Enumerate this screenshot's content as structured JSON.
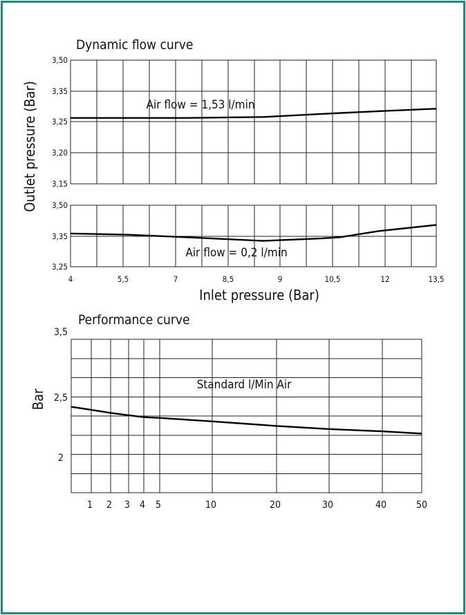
{
  "chart_data": [
    {
      "type": "line",
      "title": "Dynamic flow curve",
      "ylabel": "Outlet pressure (Bar)",
      "xlabel": "Inlet pressure (Bar)",
      "x_ticks": [
        "4",
        "5,5",
        "7",
        "8,5",
        "9",
        "10,5",
        "12",
        "13,5"
      ],
      "grid": true,
      "panels": [
        {
          "annotation": "Air flow = 1,53 l/min",
          "y_ticks": [
            "3,50",
            "3,35",
            "3,25",
            "3,20",
            "3,15"
          ],
          "series": [
            {
              "x": [
                4,
                7,
                9,
                10.5,
                12,
                13.5
              ],
              "y": [
                3.262,
                3.262,
                3.265,
                3.275,
                3.284,
                3.292
              ]
            }
          ]
        },
        {
          "annotation": "Air flow = 0,2 l/min",
          "y_ticks": [
            "3,50",
            "3,35",
            "3,25"
          ],
          "series": [
            {
              "x": [
                4,
                5.5,
                7,
                9,
                10.5,
                11,
                12,
                13.5
              ],
              "y": [
                3.385,
                3.38,
                3.37,
                3.355,
                3.365,
                3.37,
                3.395,
                3.42
              ]
            }
          ]
        }
      ]
    },
    {
      "type": "line",
      "title": "Performance curve",
      "ylabel": "Bar",
      "xlabel": "",
      "annotation": "Standard l/Min Air",
      "x_ticks": [
        "1",
        "2",
        "3",
        "4",
        "5",
        "10",
        "20",
        "30",
        "40",
        "50"
      ],
      "y_ticks": [
        "3,5",
        "2,5",
        "2"
      ],
      "ylim": [
        1.5,
        3.5
      ],
      "grid": true,
      "series": [
        {
          "x": [
            0,
            1,
            2,
            3,
            4,
            5,
            10,
            20,
            30,
            40,
            50
          ],
          "y": [
            2.62,
            2.58,
            2.54,
            2.51,
            2.485,
            2.475,
            2.43,
            2.37,
            2.33,
            2.3,
            2.27
          ]
        }
      ]
    }
  ]
}
